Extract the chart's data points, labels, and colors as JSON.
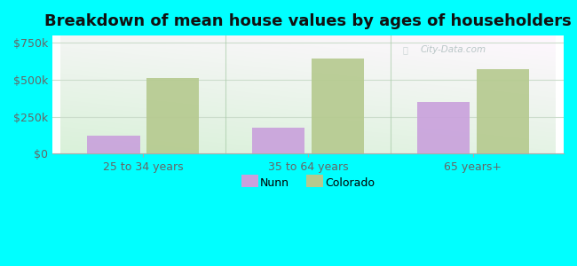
{
  "title": "Breakdown of mean house values by ages of householders",
  "categories": [
    "25 to 34 years",
    "35 to 64 years",
    "65 years+"
  ],
  "nunn_values": [
    125000,
    175000,
    350000
  ],
  "colorado_values": [
    510000,
    645000,
    575000
  ],
  "nunn_color": "#c9a0dc",
  "colorado_color": "#b5c98e",
  "background_color": "#00ffff",
  "ylim": [
    0,
    800000
  ],
  "yticks": [
    0,
    250000,
    500000,
    750000
  ],
  "ytick_labels": [
    "$0",
    "$250k",
    "$500k",
    "$750k"
  ],
  "bar_width": 0.32,
  "legend_labels": [
    "Nunn",
    "Colorado"
  ],
  "title_fontsize": 13,
  "watermark": "City-Data.com",
  "grid_color": "#ddeecc",
  "separator_color": "#aaccaa"
}
